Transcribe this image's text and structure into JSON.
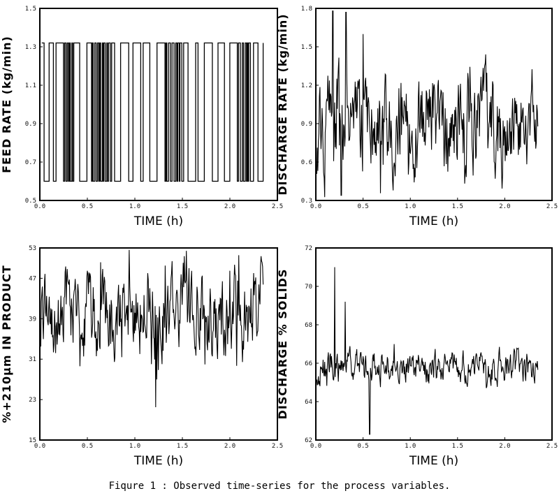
{
  "caption": "Fiqure 1 : Observed time-series for the process variables.",
  "chart_data": [
    {
      "type": "line",
      "series_seed": 11,
      "xlabel": "TIME (h)",
      "ylabel": "FEED RATE (kg/min)",
      "xlim": [
        0,
        2.5
      ],
      "ylim": [
        0.5,
        1.5
      ],
      "xticks": [
        "0.0",
        "0.5",
        "1.0",
        "1.5",
        "2.0",
        "2.5"
      ],
      "xtick_values": [
        0,
        0.5,
        1.0,
        1.5,
        2.0,
        2.5
      ],
      "yticks": [
        "0.5",
        "0.7",
        "0.9",
        "1.1",
        "1.3",
        "1.5"
      ],
      "ytick_values": [
        0.5,
        0.7,
        0.9,
        1.1,
        1.3,
        1.5
      ],
      "style": "square-wave",
      "levels": [
        0.6,
        1.32
      ],
      "x_end": 2.35
    },
    {
      "type": "line",
      "series_seed": 23,
      "xlabel": "TIME (h)",
      "ylabel": "DISCHARGE RATE (kg/min)",
      "xlim": [
        0,
        2.5
      ],
      "ylim": [
        0.3,
        1.8
      ],
      "xticks": [
        "0.0",
        "0.5",
        "1.0",
        "1.5",
        "2.0",
        "2.5"
      ],
      "xtick_values": [
        0,
        0.5,
        1.0,
        1.5,
        2.0,
        2.5
      ],
      "yticks": [
        "0.3",
        "0.6",
        "0.9",
        "1.2",
        "1.5",
        "1.8"
      ],
      "ytick_values": [
        0.3,
        0.6,
        0.9,
        1.2,
        1.5,
        1.8
      ],
      "style": "noisy",
      "mean": 0.9,
      "spread": 0.22,
      "min_point": [
        0.27,
        0.34
      ],
      "max_points": [
        [
          0.18,
          1.78
        ],
        [
          0.32,
          1.77
        ],
        [
          0.5,
          1.6
        ]
      ],
      "x_end": 2.35
    },
    {
      "type": "line",
      "series_seed": 37,
      "xlabel": "TIME (h)",
      "ylabel": "%+210μm IN PRODUCT",
      "xlim": [
        0,
        2.5
      ],
      "ylim": [
        15,
        53
      ],
      "xticks": [
        "0.0",
        "0.5",
        "1.0",
        "1.5",
        "2.0",
        "2.5"
      ],
      "xtick_values": [
        0,
        0.5,
        1.0,
        1.5,
        2.0,
        2.5
      ],
      "yticks": [
        "15",
        "23",
        "31",
        "39",
        "47",
        "53"
      ],
      "ytick_values": [
        15,
        23,
        31,
        39,
        47,
        53
      ],
      "style": "noisy",
      "mean": 40,
      "spread": 5,
      "min_point": [
        1.22,
        21.5
      ],
      "max_points": [
        [
          1.32,
          49.5
        ],
        [
          2.0,
          48.5
        ]
      ],
      "x_end": 2.35
    },
    {
      "type": "line",
      "series_seed": 53,
      "xlabel": "TIME (h)",
      "ylabel": "DISCHARGE % SOLIDS",
      "xlim": [
        0,
        2.5
      ],
      "ylim": [
        62,
        72
      ],
      "xticks": [
        "0.0",
        "0.5",
        "1.0",
        "1.5",
        "2.0",
        "2.5"
      ],
      "xtick_values": [
        0,
        0.5,
        1.0,
        1.5,
        2.0,
        2.5
      ],
      "yticks": [
        "62",
        "64",
        "66",
        "68",
        "70",
        "72"
      ],
      "ytick_values": [
        62,
        64,
        66,
        68,
        70,
        72
      ],
      "style": "noisy",
      "mean": 65.8,
      "spread": 0.5,
      "min_point": [
        0.57,
        62.3
      ],
      "max_points": [
        [
          0.2,
          71
        ],
        [
          0.31,
          69.2
        ]
      ],
      "x_end": 2.35
    }
  ]
}
